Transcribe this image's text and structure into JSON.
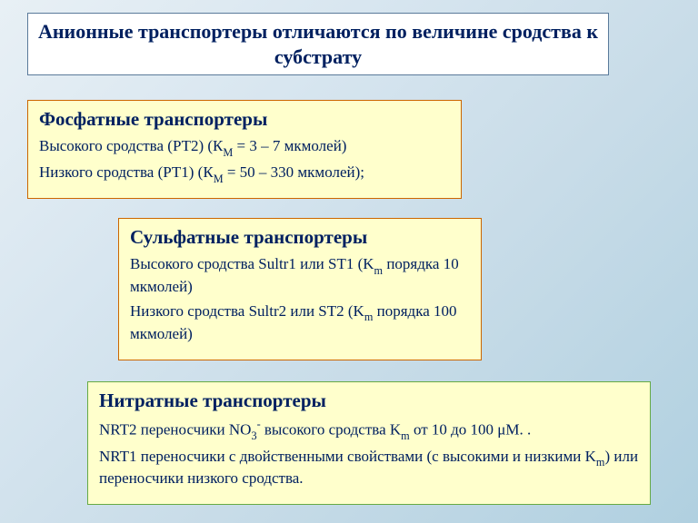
{
  "colors": {
    "text": "#002060",
    "box_bg": "#ffffcc",
    "title_bg": "#ffffff",
    "phosphate_border": "#cc6600",
    "sulfate_border": "#cc6600",
    "nitrate_border": "#66aa44",
    "title_border": "#5a7a9a",
    "page_bg_stops": [
      "#e8f0f5",
      "#d8e6f0",
      "#c8dce8",
      "#b0d0e0"
    ]
  },
  "typography": {
    "title_fontsize": 22,
    "section_title_fontsize": 21,
    "body_fontsize": 17,
    "font_family": "Times New Roman"
  },
  "title": {
    "text": "Анионные транспортеры отличаются по величине сродства к субстрату"
  },
  "phosphate": {
    "title": "Фосфатные транспортеры",
    "line1_html": "Высокого сродства (РТ2) (К<span class=\"sub\">М</span> = 3 – 7 мкмолей)",
    "line2_html": "Низкого сродства (РТ1) (К<span class=\"sub\">М</span> = 50 – 330 мкмолей);"
  },
  "sulfate": {
    "title": "Сульфатные транспортеры",
    "line1_html": "Высокого сродства Sultr1 или ST1 (K<span class=\"sub\">m</span> порядка 10 мкмолей)",
    "line2_html": "Низкого сродства Sultr2 или ST2 (K<span class=\"sub\">m</span> порядка 100 мкмолей)"
  },
  "nitrate": {
    "title": "Нитратные транспортеры",
    "line1_html": "NRT2 переносчики NO<span class=\"sub\">3</span><span class=\"sup\">-</span> высокого сродства K<span class=\"sub\">m</span> от 10 до 100 μМ. .",
    "line2_html": "NRT1 переносчики с двойственными свойствами (с высокими и низкими K<span class=\"sub\">m</span>) или переносчики низкого сродства."
  }
}
